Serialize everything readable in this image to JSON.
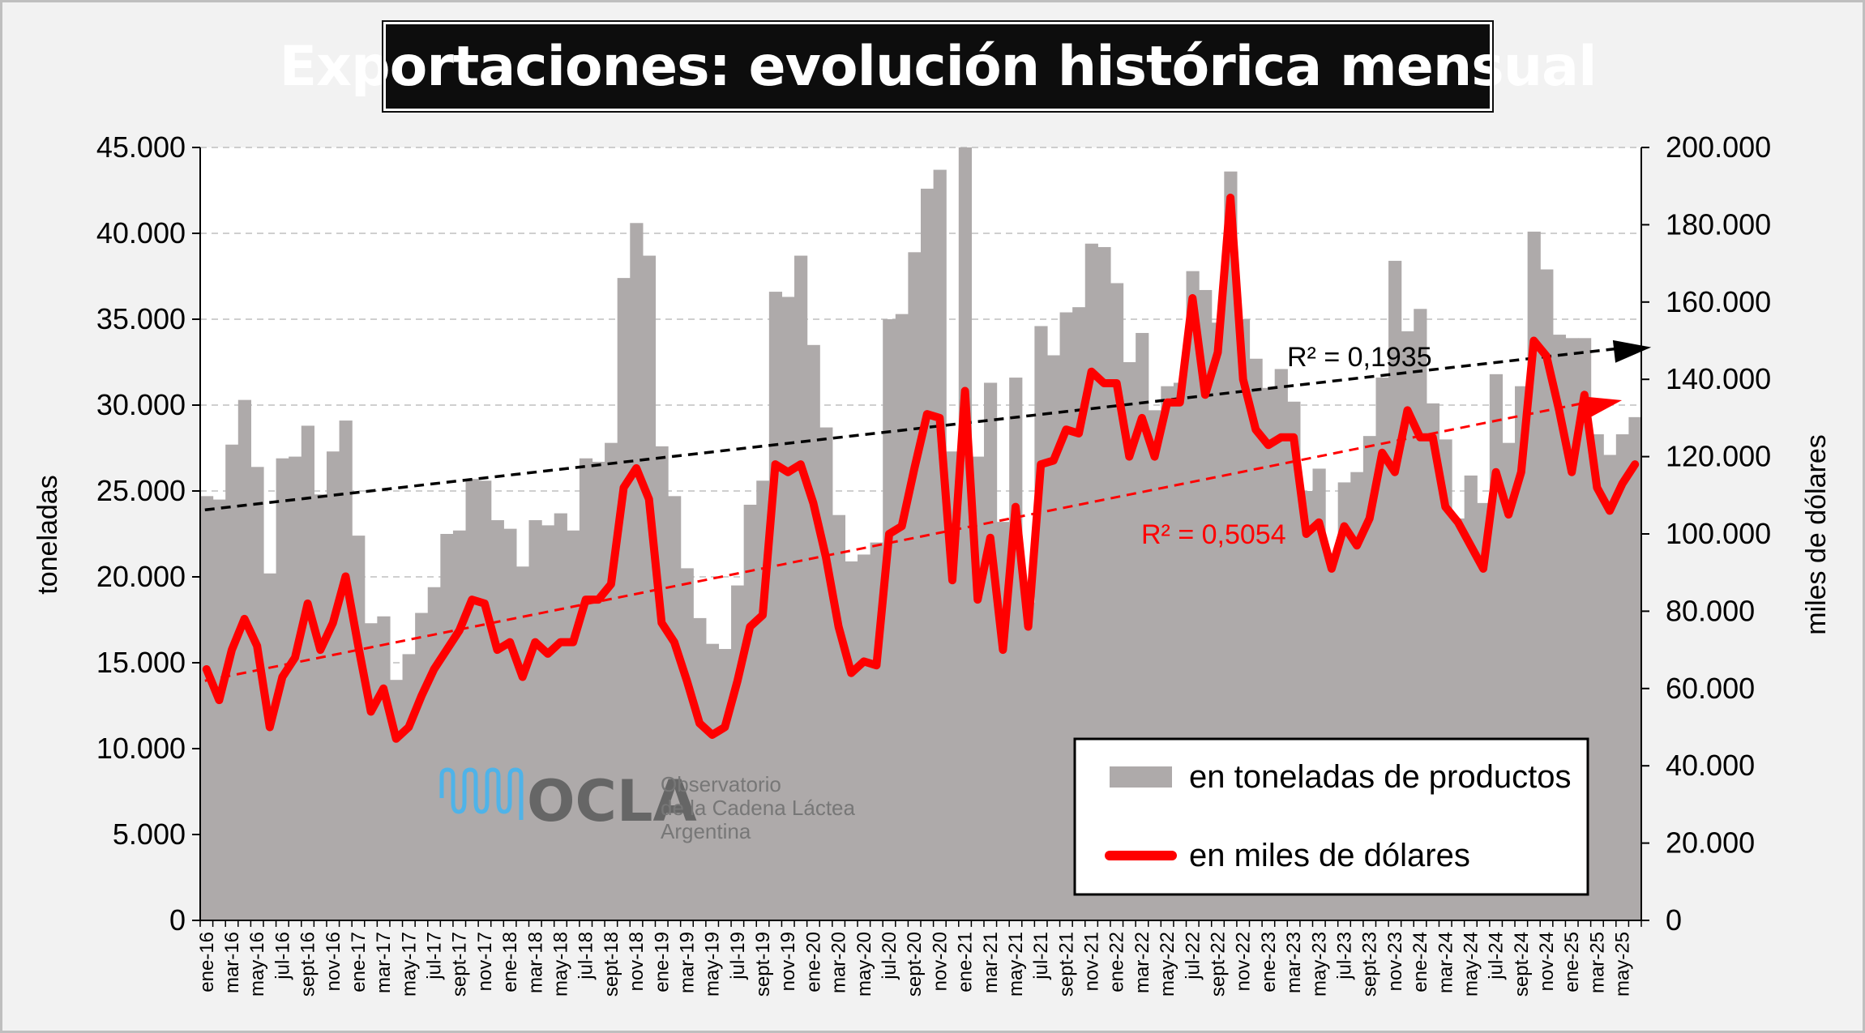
{
  "title": "Exportaciones: evolución histórica mensual",
  "chart_data": {
    "type": "bar+line",
    "title": "Exportaciones: evolución histórica mensual",
    "ylabel_left": "toneladas",
    "ylabel_right": "miles de dólares",
    "ylim_left": [
      0,
      45000
    ],
    "ylim_right": [
      0,
      200000
    ],
    "yticks_left": [
      "0",
      "5.000",
      "10.000",
      "15.000",
      "20.000",
      "25.000",
      "30.000",
      "35.000",
      "40.000",
      "45.000"
    ],
    "yticks_right": [
      "0",
      "20.000",
      "40.000",
      "60.000",
      "80.000",
      "100.000",
      "120.000",
      "140.000",
      "160.000",
      "180.000",
      "200.000"
    ],
    "grid": "horizontal dashed",
    "legend_position": "bottom-right",
    "x": [
      "ene-16",
      "feb-16",
      "mar-16",
      "abr-16",
      "may-16",
      "jun-16",
      "jul-16",
      "ago-16",
      "sept-16",
      "oct-16",
      "nov-16",
      "dic-16",
      "ene-17",
      "feb-17",
      "mar-17",
      "abr-17",
      "may-17",
      "jun-17",
      "jul-17",
      "ago-17",
      "sept-17",
      "oct-17",
      "nov-17",
      "dic-17",
      "ene-18",
      "feb-18",
      "mar-18",
      "abr-18",
      "may-18",
      "jun-18",
      "jul-18",
      "ago-18",
      "sept-18",
      "oct-18",
      "nov-18",
      "dic-18",
      "ene-19",
      "feb-19",
      "mar-19",
      "abr-19",
      "may-19",
      "jun-19",
      "jul-19",
      "ago-19",
      "sept-19",
      "oct-19",
      "nov-19",
      "dic-19",
      "ene-20",
      "feb-20",
      "mar-20",
      "abr-20",
      "may-20",
      "jun-20",
      "jul-20",
      "ago-20",
      "sept-20",
      "oct-20",
      "nov-20",
      "dic-20",
      "ene-21",
      "feb-21",
      "mar-21",
      "abr-21",
      "may-21",
      "jun-21",
      "jul-21",
      "ago-21",
      "sept-21",
      "oct-21",
      "nov-21",
      "dic-21",
      "ene-22",
      "feb-22",
      "mar-22",
      "abr-22",
      "may-22",
      "jun-22",
      "jul-22",
      "ago-22",
      "sept-22",
      "oct-22",
      "nov-22",
      "dic-22",
      "ene-23",
      "feb-23",
      "mar-23",
      "abr-23",
      "may-23",
      "jun-23",
      "jul-23",
      "ago-23",
      "sept-23",
      "oct-23",
      "nov-23",
      "dic-23",
      "ene-24",
      "feb-24",
      "mar-24",
      "abr-24",
      "may-24",
      "jun-24",
      "jul-24",
      "ago-24",
      "sept-24",
      "oct-24",
      "nov-24",
      "dic-24",
      "ene-25",
      "feb-25",
      "mar-25",
      "abr-25",
      "may-25",
      "jun-25"
    ],
    "xtick_labels": [
      "ene-16",
      "mar-16",
      "may-16",
      "jul-16",
      "sept-16",
      "nov-16",
      "ene-17",
      "mar-17",
      "may-17",
      "jul-17",
      "sept-17",
      "nov-17",
      "ene-18",
      "mar-18",
      "may-18",
      "jul-18",
      "sept-18",
      "nov-18",
      "ene-19",
      "mar-19",
      "may-19",
      "jul-19",
      "sept-19",
      "nov-19",
      "ene-20",
      "mar-20",
      "may-20",
      "jul-20",
      "sept-20",
      "nov-20",
      "ene-21",
      "mar-21",
      "may-21",
      "jul-21",
      "sept-21",
      "nov-21",
      "ene-22",
      "mar-22",
      "may-22",
      "jul-22",
      "sept-22",
      "nov-22",
      "ene-23",
      "mar-23",
      "may-23",
      "jul-23",
      "sept-23",
      "nov-23",
      "ene-24",
      "mar-24",
      "may-24",
      "jul-24",
      "sept-24",
      "nov-24",
      "ene-25",
      "mar-25",
      "may-25"
    ],
    "series": [
      {
        "name": "en toneladas de productos",
        "type": "bar",
        "axis": "left",
        "color": "#aeaaaa",
        "values": [
          24700,
          24500,
          27700,
          30300,
          26400,
          20200,
          26900,
          27000,
          28800,
          24800,
          27300,
          29100,
          22400,
          17300,
          17700,
          14000,
          15500,
          17900,
          19400,
          22500,
          22700,
          25700,
          25600,
          23300,
          22800,
          20600,
          23300,
          23000,
          23700,
          22700,
          26900,
          26700,
          27800,
          37400,
          40600,
          38700,
          27600,
          24700,
          20500,
          17600,
          16100,
          15800,
          19500,
          24200,
          25600,
          36600,
          36300,
          38700,
          33500,
          28700,
          23600,
          20900,
          21300,
          22000,
          35000,
          35300,
          38900,
          42600,
          43700,
          27300,
          45000,
          27000,
          31300,
          23200,
          31600,
          18500,
          34600,
          32900,
          35400,
          35700,
          39400,
          39200,
          37100,
          32500,
          34200,
          29700,
          31100,
          31300,
          37800,
          36700,
          34800,
          43600,
          35000,
          32700,
          31000,
          32100,
          30200,
          25000,
          26300,
          21300,
          25500,
          26100,
          28200,
          31600,
          38400,
          34300,
          35600,
          30100,
          28000,
          23400,
          25900,
          24300,
          31800,
          27800,
          31100,
          40100,
          37900,
          34100,
          33900,
          33900,
          28300,
          27100,
          28300,
          29300
        ]
      },
      {
        "name": "en miles de dólares",
        "type": "line",
        "axis": "right",
        "color": "#ff0000",
        "values": [
          65000,
          57000,
          70000,
          78000,
          71000,
          50000,
          63000,
          68000,
          82000,
          70000,
          77000,
          89000,
          71000,
          54000,
          60000,
          47000,
          50000,
          58000,
          65000,
          70000,
          75000,
          83000,
          82000,
          70000,
          72000,
          63000,
          72000,
          69000,
          72000,
          72000,
          83000,
          83000,
          87000,
          112000,
          117000,
          109000,
          77000,
          72000,
          62000,
          51000,
          48000,
          50000,
          62000,
          76000,
          79000,
          118000,
          116000,
          118000,
          108000,
          94000,
          76000,
          64000,
          67000,
          66000,
          100000,
          102000,
          117000,
          131000,
          130000,
          88000,
          137000,
          83000,
          99000,
          70000,
          107000,
          76000,
          118000,
          119000,
          127000,
          126000,
          142000,
          139000,
          139000,
          120000,
          130000,
          120000,
          134000,
          134000,
          161000,
          136000,
          147000,
          187000,
          140000,
          127000,
          123000,
          125000,
          125000,
          100000,
          103000,
          91000,
          102000,
          97000,
          104000,
          121000,
          116000,
          132000,
          125000,
          125000,
          107000,
          103000,
          97000,
          91000,
          116000,
          105000,
          116000,
          150000,
          146000,
          132000,
          116000,
          136000,
          112000,
          106000,
          113000,
          118000
        ]
      }
    ],
    "trendlines": [
      {
        "series": "en toneladas de productos",
        "color": "#000000",
        "style": "dashed",
        "r2_label": "R² = 0,1935",
        "start_value_left": 23900,
        "end_value_left": 33300
      },
      {
        "series": "en miles de dólares",
        "color": "#ff0000",
        "style": "dashed",
        "r2_label": "R² = 0,5054",
        "start_value_right": 62000,
        "end_value_right": 134000
      }
    ]
  },
  "legend": {
    "bar_label": "en toneladas de productos",
    "line_label": "en miles de dólares"
  },
  "logo": {
    "brand": "OCLA",
    "line1": "Observatorio",
    "line2": "de la Cadena Láctea",
    "line3": "Argentina"
  },
  "colors": {
    "frame_bg": "#f2f2f2",
    "plot_bg": "#ffffff",
    "bars": "#aeaaaa",
    "line": "#ff0000",
    "title_bg": "#0d0d0d",
    "logo_wave": "#4fb3e8"
  }
}
